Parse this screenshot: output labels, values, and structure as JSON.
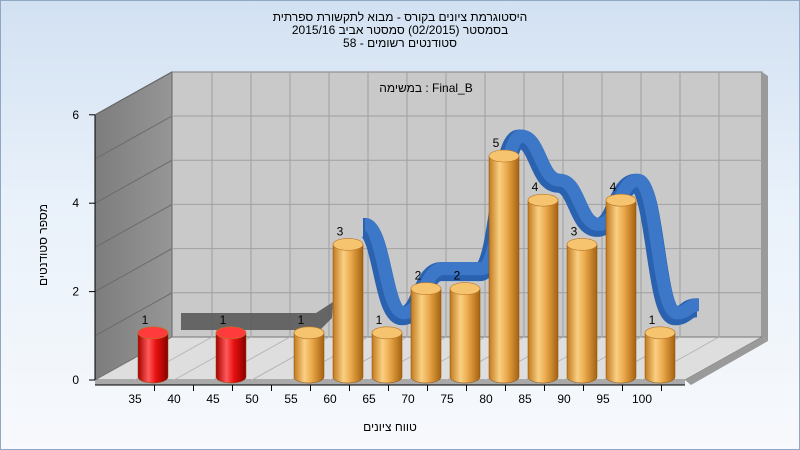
{
  "chart_data": {
    "type": "bar",
    "title_lines": [
      "היסטוגרמת ציונים בקורס - מבוא לתקשורת ספרתית",
      "בסמסטר  (02/2015)  סמסטר אביב 2015/16",
      "סטודנטים רשומים - 58"
    ],
    "annotation": "במשימה : Final_B",
    "xlabel": "טווח ציונים",
    "ylabel": "מספר סטודנטים",
    "x_ticks": [
      "35",
      "40",
      "45",
      "50",
      "55",
      "60",
      "65",
      "70",
      "75",
      "80",
      "85",
      "90",
      "95",
      "100"
    ],
    "y_ticks": [
      "0",
      "2",
      "4",
      "6"
    ],
    "ylim": [
      0,
      6
    ],
    "bars": [
      {
        "x": 35,
        "value": 1,
        "label": "1",
        "color": "red"
      },
      {
        "x": 45,
        "value": 1,
        "label": "1",
        "color": "red"
      },
      {
        "x": 55,
        "value": 1,
        "label": "1",
        "color": "orange"
      },
      {
        "x": 60,
        "value": 3,
        "label": "3",
        "color": "orange"
      },
      {
        "x": 65,
        "value": 1,
        "label": "1",
        "color": "orange"
      },
      {
        "x": 70,
        "value": 2,
        "label": "2",
        "color": "orange"
      },
      {
        "x": 75,
        "value": 2,
        "label": "2",
        "color": "orange"
      },
      {
        "x": 80,
        "value": 5,
        "label": "5",
        "color": "orange"
      },
      {
        "x": 85,
        "value": 4,
        "label": "4",
        "color": "orange"
      },
      {
        "x": 90,
        "value": 3,
        "label": "3",
        "color": "orange"
      },
      {
        "x": 95,
        "value": 4,
        "label": "4",
        "color": "orange"
      },
      {
        "x": 100,
        "value": 1,
        "label": "1",
        "color": "orange"
      }
    ],
    "colors": {
      "fail": "#e01010",
      "pass": "#e8a640",
      "curve": "#3d78c8",
      "back_wall": "#c9c9c9",
      "side_wall": "#8a8a8a",
      "floor": "#dcdcdc",
      "ribbon": "#5a5a5a"
    }
  }
}
